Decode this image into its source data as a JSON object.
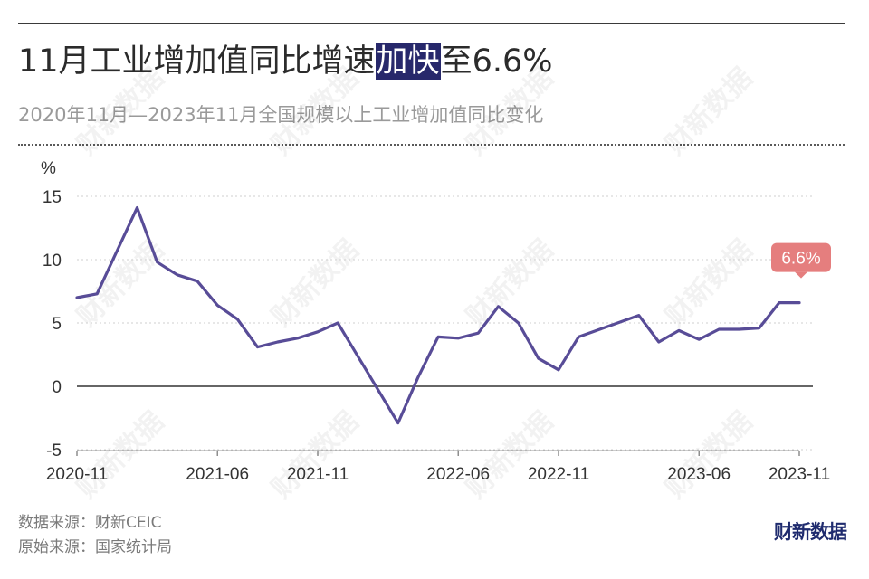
{
  "title": {
    "pre": "11月工业增加值同比增速",
    "highlight": "加快",
    "post": "至6.6%"
  },
  "subtitle": "2020年11月—2023年11月全国规模以上工业增加值同比变化",
  "source": {
    "data_source": "数据来源：财新CEIC",
    "original_source": "原始来源：国家统计局"
  },
  "brand": "财新数据",
  "watermark": "财新数据",
  "colors": {
    "line": "#584c97",
    "callout": "#e57e7e",
    "highlight_bg": "#27286b",
    "zero_line": "#333333"
  },
  "chart_data": {
    "type": "line",
    "title": "11月工业增加值同比增速加快至6.6%",
    "ylabel": "%",
    "ylim": [
      -5,
      15
    ],
    "yticks": [
      -5,
      0,
      5,
      10,
      15
    ],
    "xtick_labels": [
      "2020-11",
      "2021-06",
      "2021-11",
      "2022-06",
      "2022-11",
      "2023-06",
      "2023-11"
    ],
    "grid": "horizontal dotted",
    "x": [
      "2020-11",
      "2020-12",
      "2021-02",
      "2021-03",
      "2021-04",
      "2021-05",
      "2021-06",
      "2021-07",
      "2021-08",
      "2021-09",
      "2021-10",
      "2021-11",
      "2021-12",
      "2022-03",
      "2022-04",
      "2022-05",
      "2022-06",
      "2022-07",
      "2022-08",
      "2022-09",
      "2022-10",
      "2022-11",
      "2022-12",
      "2023-03",
      "2023-04",
      "2023-05",
      "2023-06",
      "2023-07",
      "2023-08",
      "2023-09",
      "2023-10",
      "2023-11"
    ],
    "values": [
      7.0,
      7.3,
      14.1,
      9.8,
      8.8,
      8.3,
      6.4,
      5.3,
      3.1,
      3.5,
      3.8,
      4.3,
      5.0,
      -2.9,
      0.7,
      3.9,
      3.8,
      4.2,
      6.3,
      5.0,
      2.2,
      1.3,
      3.9,
      5.6,
      3.5,
      4.4,
      3.7,
      4.5,
      4.5,
      4.6,
      6.6,
      6.6
    ],
    "annotation": "6.6%"
  }
}
